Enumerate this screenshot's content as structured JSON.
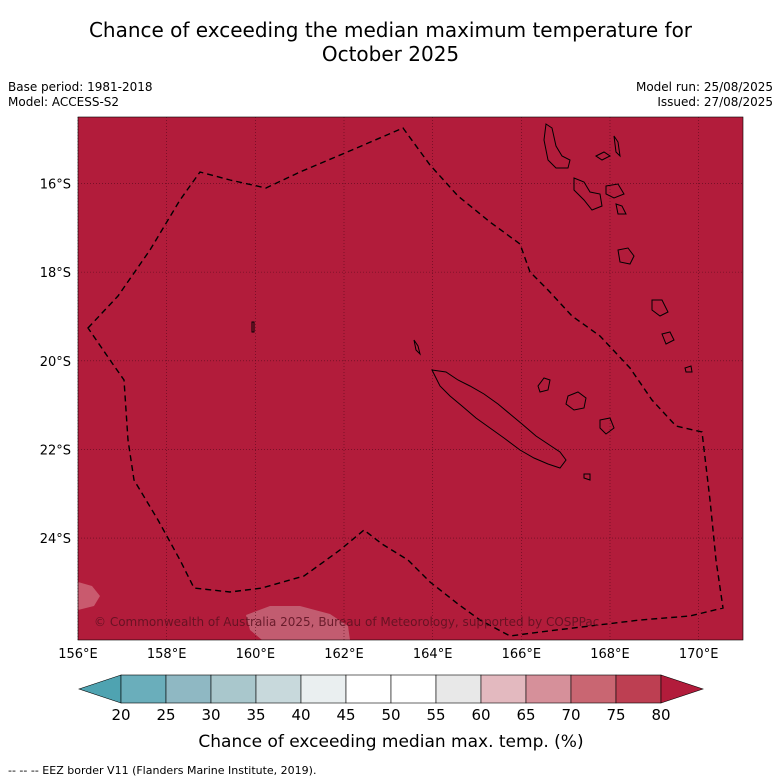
{
  "title_line1": "Chance of exceeding the median maximum temperature for",
  "title_line2": "October 2025",
  "meta": {
    "base_period": "Base period: 1981-2018",
    "model": "Model: ACCESS-S2",
    "model_run": "Model run: 25/08/2025",
    "issued": "Issued: 27/08/2025"
  },
  "map": {
    "background_color": "#b21c3b",
    "lon_range": [
      156,
      171
    ],
    "lat_range": [
      -26.3,
      -14.5
    ],
    "lon_ticks": [
      {
        "value": 156,
        "label": "156°E"
      },
      {
        "value": 158,
        "label": "158°E"
      },
      {
        "value": 160,
        "label": "160°E"
      },
      {
        "value": 162,
        "label": "162°E"
      },
      {
        "value": 164,
        "label": "164°E"
      },
      {
        "value": 166,
        "label": "166°E"
      },
      {
        "value": 168,
        "label": "168°E"
      },
      {
        "value": 170,
        "label": "170°E"
      }
    ],
    "lat_ticks": [
      {
        "value": -16,
        "label": "16°S"
      },
      {
        "value": -18,
        "label": "18°S"
      },
      {
        "value": -20,
        "label": "20°S"
      },
      {
        "value": -22,
        "label": "22°S"
      },
      {
        "value": -24,
        "label": "24°S"
      }
    ],
    "copyright": "© Commonwealth of Australia 2025, Bureau of Meteorology, supported by COSPPac"
  },
  "colorbar": {
    "ticks": [
      "20",
      "25",
      "30",
      "35",
      "40",
      "45",
      "50",
      "55",
      "60",
      "65",
      "70",
      "75",
      "80"
    ],
    "colors": [
      "#6aaebb",
      "#8fb8c3",
      "#a9c7cc",
      "#c8d9dc",
      "#eaeff0",
      "#ffffff",
      "#ffffff",
      "#e8e8e8",
      "#e3b9bf",
      "#d6909a",
      "#c96672",
      "#bd3f52"
    ],
    "under_color": "#4fa3b1",
    "over_color": "#b21c3b",
    "label": "Chance of exceeding median max. temp. (%)"
  },
  "footnote": "--  --  -- EEZ border V11 (Flanders Marine Institute, 2019)."
}
